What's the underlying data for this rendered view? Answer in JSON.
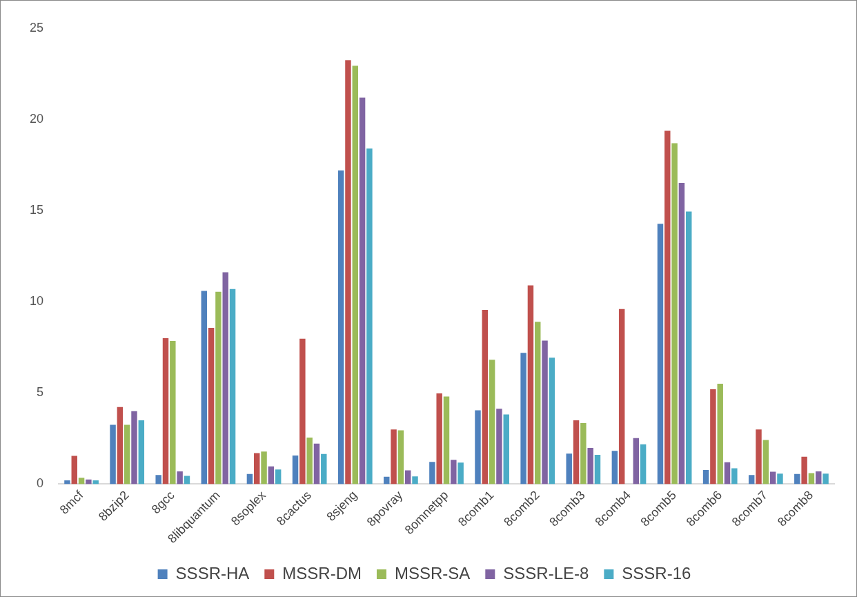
{
  "chart_data": {
    "type": "bar",
    "categories": [
      "8mcf",
      "8bzip2",
      "8gcc",
      "8libquantum",
      "8soplex",
      "8cactus",
      "8sjeng",
      "8povray",
      "8omnetpp",
      "8comb1",
      "8comb2",
      "8comb3",
      "8comb4",
      "8comb5",
      "8comb6",
      "8comb7",
      "8comb8"
    ],
    "series": [
      {
        "name": "SSSR-HA",
        "color": "#4f81bd",
        "values": [
          0.2,
          3.25,
          0.5,
          10.6,
          0.55,
          1.57,
          17.2,
          0.4,
          1.22,
          4.05,
          7.2,
          1.67,
          1.82,
          14.28,
          0.77,
          0.5,
          0.55
        ]
      },
      {
        "name": "MSSR-DM",
        "color": "#c0504d",
        "values": [
          1.55,
          4.23,
          8.0,
          8.57,
          1.7,
          7.97,
          23.25,
          3.0,
          4.97,
          9.55,
          10.9,
          3.5,
          9.6,
          19.38,
          5.2,
          3.0,
          1.5
        ]
      },
      {
        "name": "MSSR-SA",
        "color": "#9bbb59",
        "values": [
          0.35,
          3.25,
          7.85,
          10.55,
          1.78,
          2.55,
          22.95,
          2.95,
          4.8,
          6.82,
          8.9,
          3.35,
          null,
          18.7,
          5.5,
          2.42,
          0.6
        ]
      },
      {
        "name": "SSSR-LE-8",
        "color": "#8064a2",
        "values": [
          0.25,
          4.0,
          0.7,
          11.62,
          0.97,
          2.22,
          21.2,
          0.75,
          1.33,
          4.13,
          7.87,
          1.98,
          2.52,
          16.52,
          1.2,
          0.68,
          0.7
        ]
      },
      {
        "name": "SSSR-16",
        "color": "#4bacc6",
        "values": [
          0.2,
          3.5,
          0.45,
          10.7,
          0.8,
          1.65,
          18.4,
          0.42,
          1.18,
          3.82,
          6.93,
          1.6,
          2.18,
          14.95,
          0.87,
          0.57,
          0.57
        ]
      }
    ],
    "ylim": [
      0,
      25
    ],
    "yticks": [
      0,
      5,
      10,
      15,
      20,
      25
    ],
    "grid": false,
    "legend": "bottom"
  }
}
